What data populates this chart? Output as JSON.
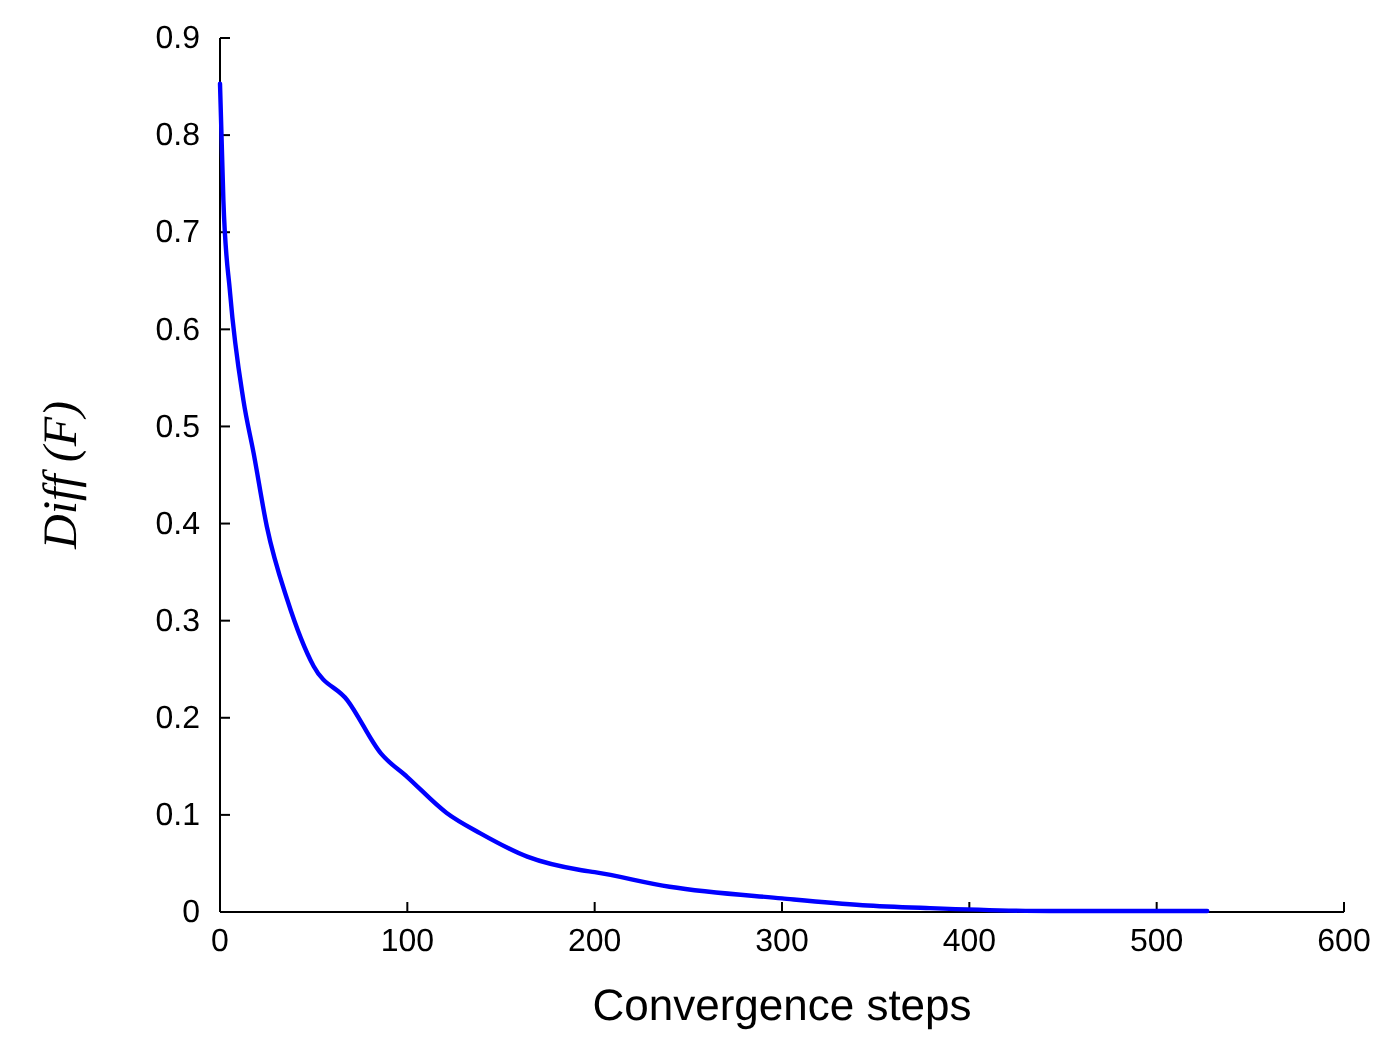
{
  "chart_data": {
    "type": "line",
    "xlabel": "Convergence steps",
    "ylabel": "Diff (F)",
    "xlim": [
      0,
      600
    ],
    "xticks": [
      0,
      100,
      200,
      300,
      400,
      500,
      600
    ],
    "ylim": [
      0,
      0.9
    ],
    "yticks": [
      0,
      0.1,
      0.2,
      0.3,
      0.4,
      0.5,
      0.6,
      0.7,
      0.8,
      0.9
    ],
    "grid": false,
    "series": [
      {
        "color": "#0000ff",
        "x": [
          0,
          1.8,
          5.4,
          12.5,
          18,
          25,
          36,
          50,
          68,
          86,
          100,
          121,
          139,
          164,
          193,
          200,
          240,
          300,
          343,
          379,
          443,
          527
        ],
        "values": [
          0.853,
          0.733,
          0.637,
          0.527,
          0.472,
          0.397,
          0.321,
          0.253,
          0.218,
          0.163,
          0.139,
          0.102,
          0.081,
          0.057,
          0.043,
          0.041,
          0.026,
          0.014,
          0.007,
          0.004,
          0.001,
          0.001
        ]
      }
    ]
  }
}
